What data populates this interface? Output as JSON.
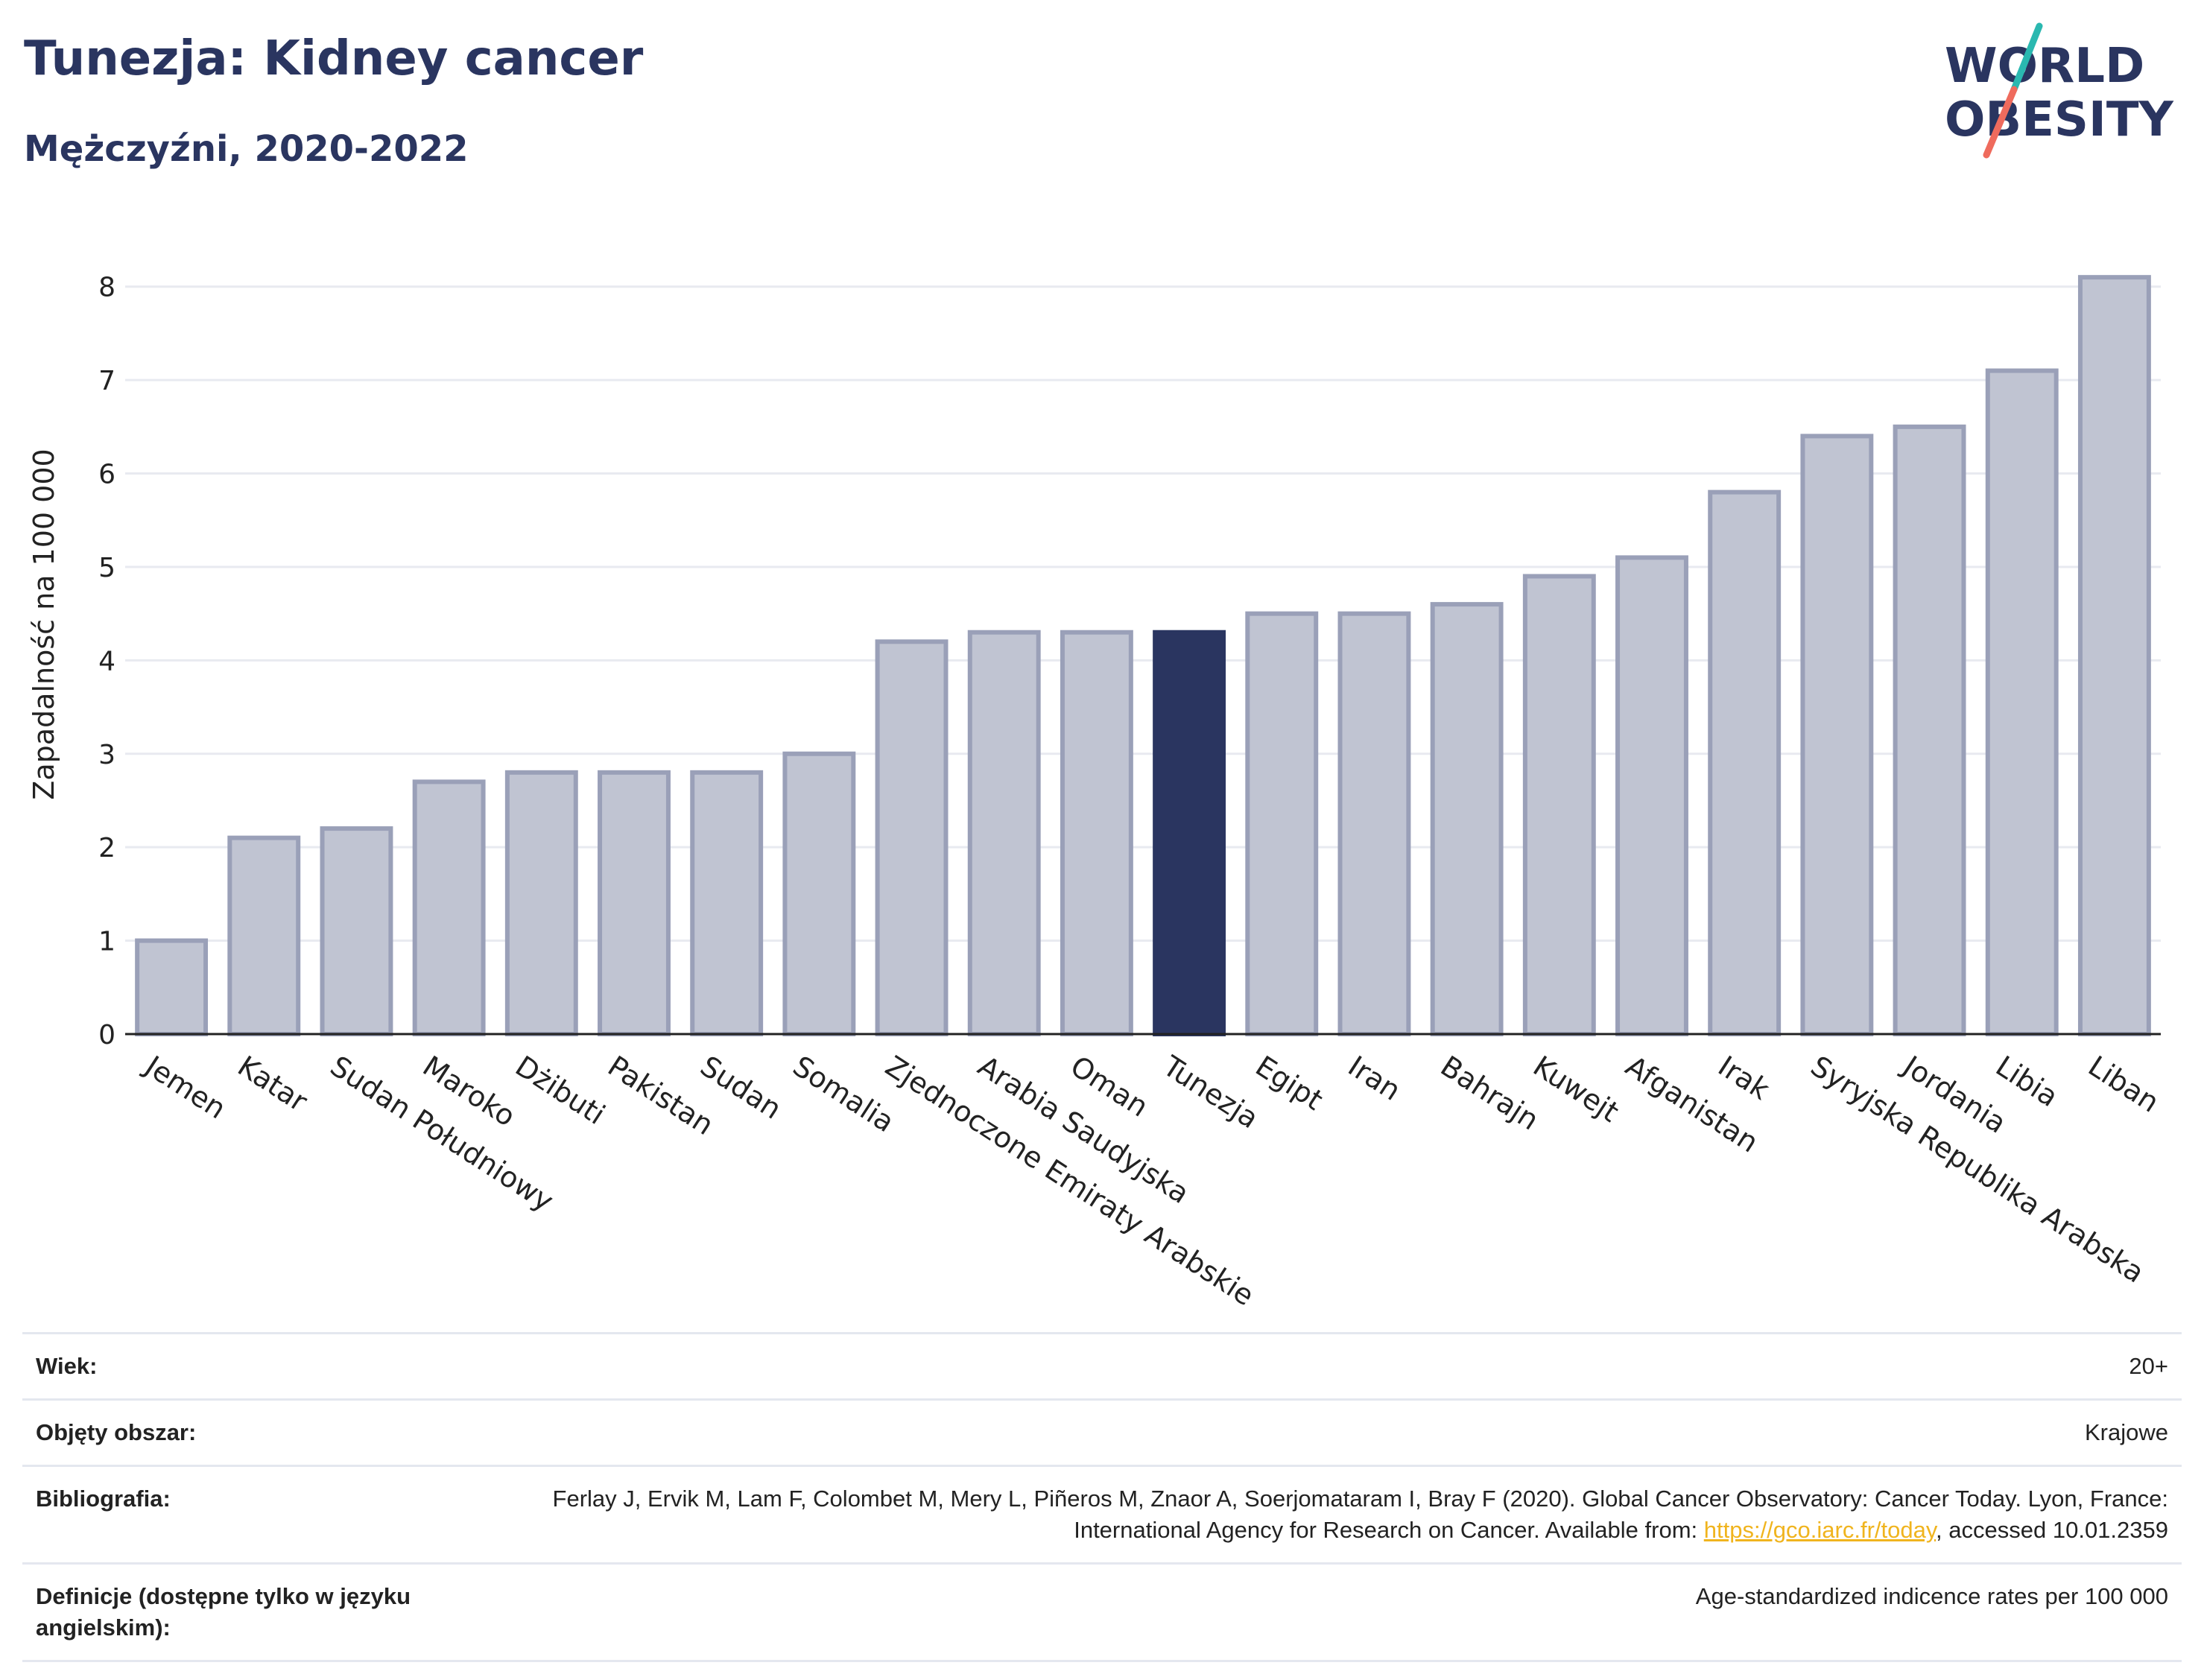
{
  "header": {
    "title": "Tunezja: Kidney cancer",
    "subtitle": "Mężczyźni, 2020-2022"
  },
  "logo": {
    "line1": "WORLD",
    "line2": "OBESITY",
    "colors": {
      "text": "#2a3560",
      "slash_top": "#2ab8b0",
      "slash_bottom": "#ef6b5d"
    }
  },
  "colors": {
    "highlight": "#2a3560",
    "bar_fill": "#c0c4d2",
    "bar_stroke": "#9aa0b8",
    "grid": "#e8eaf0",
    "axis": "#222222",
    "link": "#f0b41e"
  },
  "chart_data": {
    "type": "bar",
    "title": "",
    "xlabel": "",
    "ylabel": "Zapadalność na 100 000",
    "ylim": [
      0,
      8.5
    ],
    "yticks": [
      0,
      1,
      2,
      3,
      4,
      5,
      6,
      7,
      8
    ],
    "grid": true,
    "highlight": "Tunezja",
    "categories": [
      "Jemen",
      "Katar",
      "Sudan Południowy",
      "Maroko",
      "Dżibuti",
      "Pakistan",
      "Sudan",
      "Somalia",
      "Zjednoczone Emiraty Arabskie",
      "Arabia Saudyjska",
      "Oman",
      "Tunezja",
      "Egipt",
      "Iran",
      "Bahrajn",
      "Kuwejt",
      "Afganistan",
      "Irak",
      "Syryjska Republika Arabska",
      "Jordania",
      "Libia",
      "Liban"
    ],
    "values": [
      1.0,
      2.1,
      2.2,
      2.7,
      2.8,
      2.8,
      2.8,
      3.0,
      4.2,
      4.3,
      4.3,
      4.3,
      4.5,
      4.5,
      4.6,
      4.9,
      5.1,
      5.8,
      6.4,
      6.5,
      7.1,
      8.1
    ]
  },
  "info": [
    {
      "key": "Wiek:",
      "value": "20+"
    },
    {
      "key": "Objęty obszar:",
      "value": "Krajowe"
    },
    {
      "key": "Bibliografia:",
      "value_before": "Ferlay J, Ervik M, Lam F, Colombet M, Mery L, Piñeros M, Znaor A, Soerjomataram I, Bray F (2020). Global Cancer Observatory: Cancer Today. Lyon, France: International Agency for Research on Cancer. Available from: ",
      "link": "https://gco.iarc.fr/today",
      "value_after": ", accessed 10.01.2359"
    },
    {
      "key": "Definicje (dostępne tylko w języku angielskim):",
      "value": "Age-standardized indicence rates per 100 000"
    }
  ]
}
